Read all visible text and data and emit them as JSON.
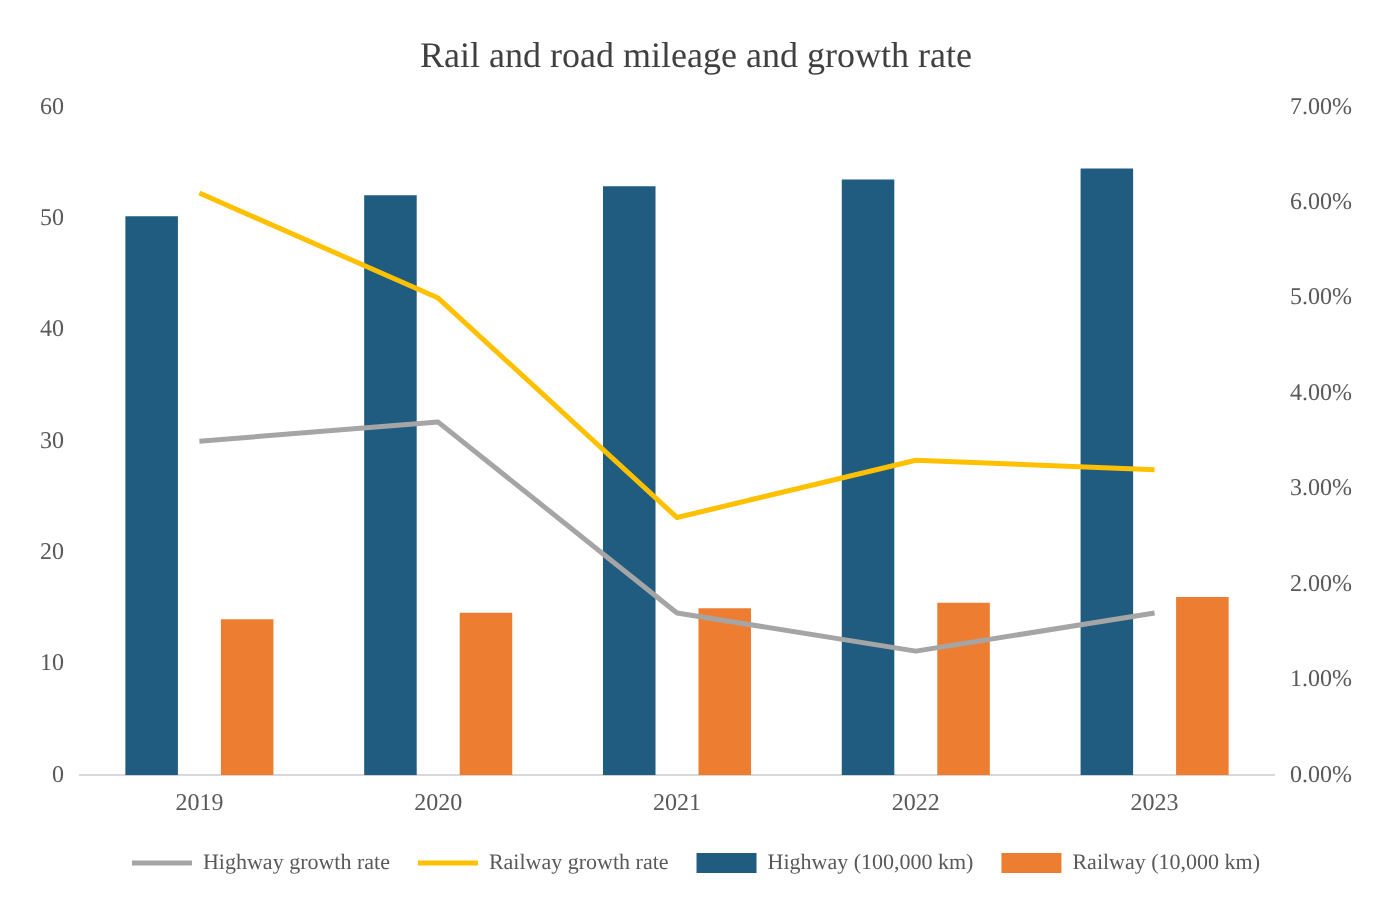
{
  "chart_data": {
    "type": "bar",
    "title": "Rail and road mileage and growth rate",
    "categories": [
      "2019",
      "2020",
      "2021",
      "2022",
      "2023"
    ],
    "series": [
      {
        "name": "Highway (100,000 km)",
        "color": "#1f5c80",
        "values": [
          50.2,
          52.1,
          52.9,
          53.5,
          54.5
        ]
      },
      {
        "name": "Railway (10,000 km)",
        "color": "#ed7d31",
        "values": [
          14,
          14.6,
          15,
          15.5,
          16
        ]
      },
      {
        "name": "Highway growth rate",
        "type": "line",
        "axis": "y2",
        "color": "#a5a5a5",
        "values": [
          3.5,
          3.7,
          1.7,
          1.3,
          1.7
        ]
      },
      {
        "name": "Railway growth rate",
        "type": "line",
        "axis": "y2",
        "color": "#ffc000",
        "values": [
          6.1,
          5.0,
          2.7,
          3.3,
          3.2
        ]
      }
    ],
    "ylim": [
      0,
      60
    ],
    "yticks": [
      0,
      10,
      20,
      30,
      40,
      50,
      60
    ],
    "y2lim": [
      0,
      7
    ],
    "y2ticks": [
      {
        "value": 0,
        "label": "0.00%"
      },
      {
        "value": 1,
        "label": "1.00%"
      },
      {
        "value": 2,
        "label": "2.00%"
      },
      {
        "value": 3,
        "label": "3.00%"
      },
      {
        "value": 4,
        "label": "4.00%"
      },
      {
        "value": 5,
        "label": "5.00%"
      },
      {
        "value": 6,
        "label": "6.00%"
      },
      {
        "value": 7,
        "label": "7.00%"
      }
    ],
    "grid": false,
    "legend": "bottom",
    "marker": "none",
    "line_style": "solid"
  }
}
